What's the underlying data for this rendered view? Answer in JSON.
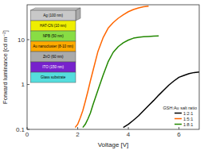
{
  "chart_data": {
    "type": "line",
    "xlabel": "Voltage [V]",
    "ylabel": "Forward luminance [cd m⁻²]",
    "log": "y",
    "xlim": [
      0,
      6.8
    ],
    "xticks": [
      0,
      2,
      4,
      6
    ],
    "ylim": [
      0.1,
      60
    ],
    "yticks": [
      0.1,
      1,
      10
    ],
    "grid": false,
    "legend": "lower right",
    "legend_title": "GSH:Au salt ratio",
    "annotations": [
      "Ag (100 nm)",
      "HAT-CN (10 nm)",
      "NPB (50 nm)",
      "Au nanocluster (8-10 nm)",
      "ZnO (60 nm)",
      "ITO (150 nm)",
      "Glass substrate"
    ],
    "series": [
      {
        "name": "1:2:1",
        "color": "#000000",
        "x": [
          3.8,
          4.0,
          4.2,
          4.4,
          4.6,
          4.8,
          5.0,
          5.2,
          5.4,
          5.6,
          5.8,
          6.0,
          6.2,
          6.4,
          6.6,
          6.8
        ],
        "values": [
          0.11,
          0.13,
          0.16,
          0.2,
          0.26,
          0.34,
          0.44,
          0.58,
          0.75,
          0.97,
          1.2,
          1.45,
          1.6,
          1.75,
          1.85,
          1.9
        ]
      },
      {
        "name": "1:5:1",
        "color": "#ff6600",
        "x": [
          1.9,
          2.0,
          2.1,
          2.2,
          2.3,
          2.4,
          2.5,
          2.6,
          2.8,
          3.0,
          3.2,
          3.4,
          3.6,
          3.8,
          4.0,
          4.2,
          4.4,
          4.6,
          4.8
        ],
        "values": [
          0.11,
          0.13,
          0.18,
          0.26,
          0.42,
          0.7,
          1.2,
          2.0,
          5.5,
          11.0,
          18.0,
          24.0,
          30.0,
          36.0,
          42.0,
          47.0,
          51.0,
          54.0,
          56.0
        ]
      },
      {
        "name": "1:8:1",
        "color": "#228800",
        "x": [
          2.2,
          2.3,
          2.4,
          2.5,
          2.6,
          2.8,
          3.0,
          3.2,
          3.4,
          3.6,
          3.8,
          4.0,
          4.2,
          4.4,
          4.6,
          4.8,
          5.0,
          5.2
        ],
        "values": [
          0.11,
          0.13,
          0.17,
          0.23,
          0.35,
          0.75,
          1.6,
          3.2,
          5.2,
          7.0,
          8.5,
          9.8,
          10.8,
          11.3,
          11.6,
          11.8,
          12.0,
          12.1
        ]
      }
    ]
  }
}
